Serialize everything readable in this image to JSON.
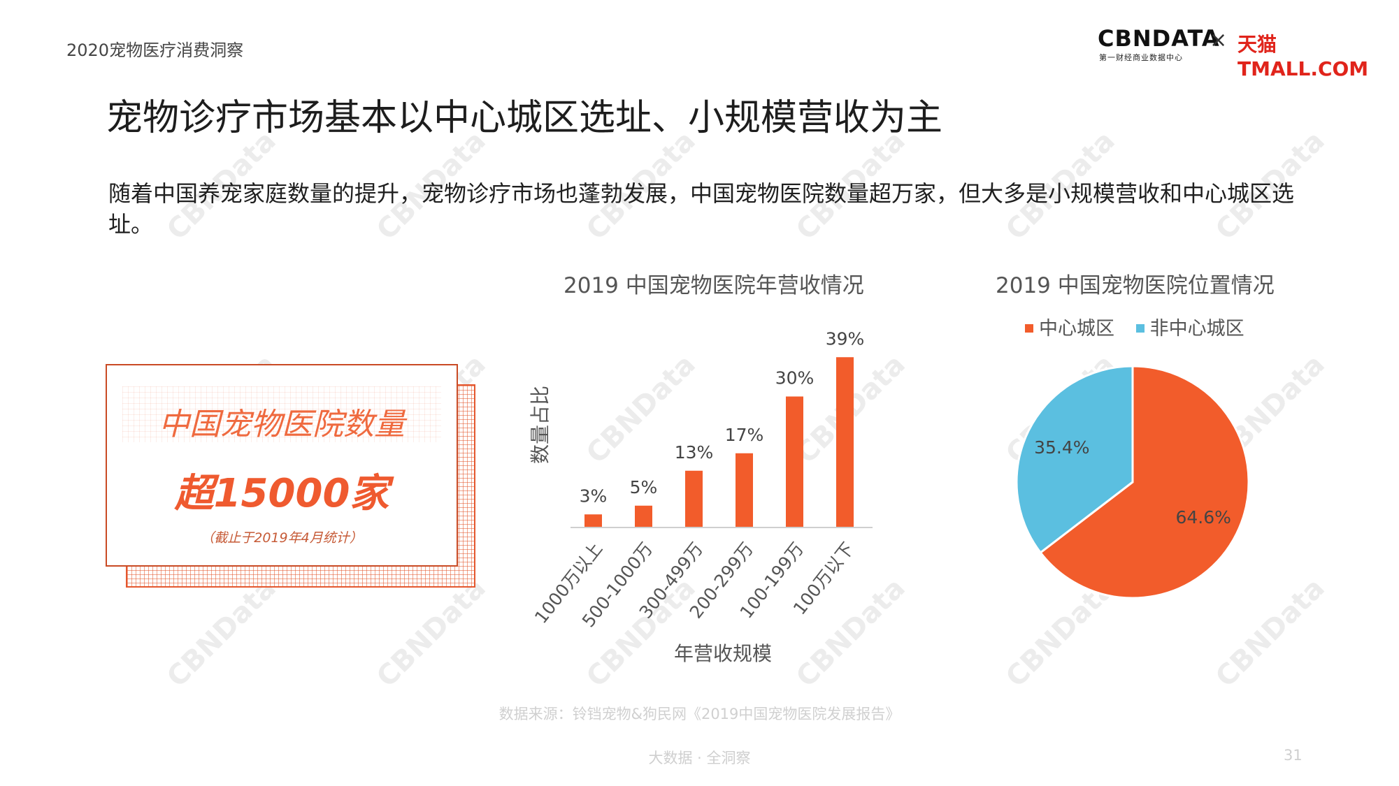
{
  "watermark": "CBNData",
  "header": {
    "report_title": "2020宠物医疗消费洞察",
    "brand_cbn": "CBNDATA",
    "brand_cbn_sub": "第一财经商业数据中心",
    "brand_x": "×",
    "brand_tmall": "天猫TMALL.COM"
  },
  "main_title": "宠物诊疗市场基本以中心城区选址、小规模营收为主",
  "description": "随着中国养宠家庭数量的提升，宠物诊疗市场也蓬勃发展，中国宠物医院数量超万家，但大多是小规模营收和中心城区选址。",
  "highlight_card": {
    "label": "中国宠物医院数量",
    "value": "超15000家",
    "note": "（截止于2019年4月统计）"
  },
  "chart_data": [
    {
      "type": "bar",
      "title": "2019 中国宠物医院年营收情况",
      "xlabel": "年营收规模",
      "ylabel": "数量占比",
      "categories": [
        "1000万以上",
        "500-1000万",
        "300-499万",
        "200-299万",
        "100-199万",
        "100万以下"
      ],
      "values": [
        3,
        5,
        13,
        17,
        30,
        39
      ],
      "data_labels": [
        "3%",
        "5%",
        "13%",
        "17%",
        "30%",
        "39%"
      ],
      "color": "#f25c2b",
      "grid": false
    },
    {
      "type": "pie",
      "title": "2019 中国宠物医院位置情况",
      "legend_position": "top",
      "slices": [
        {
          "label": "中心城区",
          "value": 64.6,
          "display": "64.6%",
          "color": "#f25c2b"
        },
        {
          "label": "非中心城区",
          "value": 35.4,
          "display": "35.4%",
          "color": "#5bbfe0"
        }
      ]
    }
  ],
  "source": "数据来源：铃铛宠物&狗民网《2019中国宠物医院发展报告》",
  "footer": "大数据 · 全洞察",
  "page_number": "31"
}
